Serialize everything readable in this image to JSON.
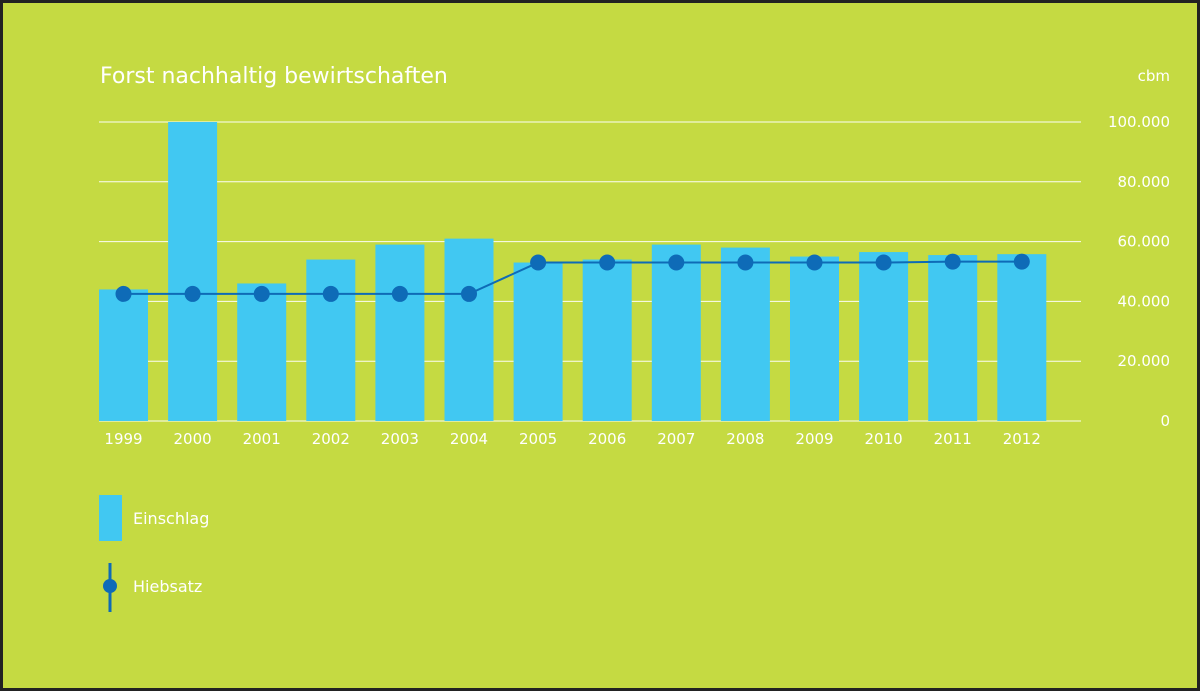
{
  "colors": {
    "background": "#c5da42",
    "bar": "#41c8f2",
    "line": "#0e6bb7",
    "text": "#ffffff",
    "grid": "#ffffff",
    "border": "#222222"
  },
  "chart_data": {
    "type": "bar",
    "title": "Forst nachhaltig bewirtschaften",
    "unit_label": "cbm",
    "categories": [
      "1999",
      "2000",
      "2001",
      "2002",
      "2003",
      "2004",
      "2005",
      "2006",
      "2007",
      "2008",
      "2009",
      "2010",
      "2011",
      "2012"
    ],
    "series": [
      {
        "name": "Einschlag",
        "type": "bar",
        "values": [
          44000,
          100000,
          46000,
          54000,
          59000,
          61000,
          53000,
          54000,
          59000,
          58000,
          55000,
          56500,
          55500,
          55800
        ]
      },
      {
        "name": "Hiebsatz",
        "type": "line",
        "values": [
          42500,
          42500,
          42500,
          42500,
          42500,
          42500,
          53000,
          53000,
          53000,
          53000,
          53000,
          53000,
          53300,
          53300
        ]
      }
    ],
    "ylim": [
      0,
      100000
    ],
    "yticks": [
      0,
      20000,
      40000,
      60000,
      80000,
      100000
    ],
    "ytick_labels": [
      "0",
      "20.000",
      "40.000",
      "60.000",
      "80.000",
      "100.000"
    ],
    "grid": true,
    "y_axis_side": "right",
    "legend_position": "bottom-left"
  }
}
